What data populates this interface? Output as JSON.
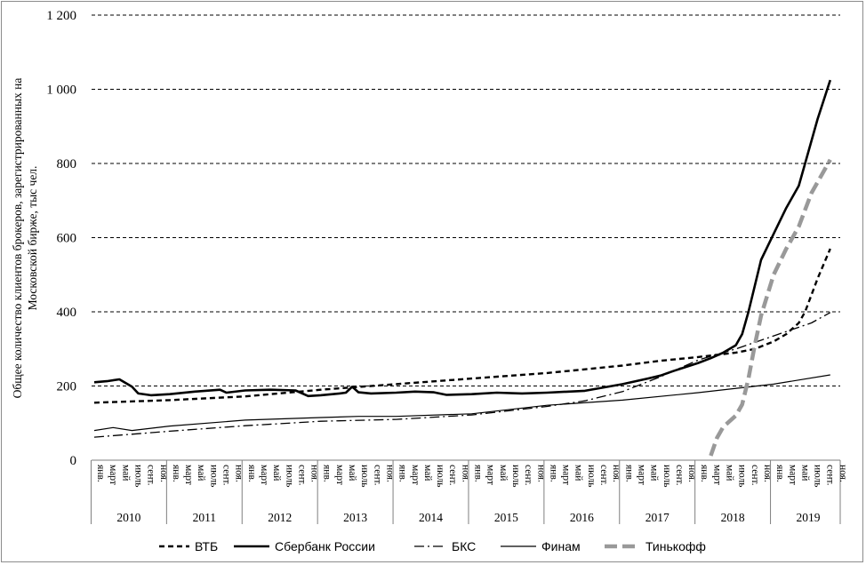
{
  "chart_data": {
    "type": "line",
    "title": "",
    "ylabel": "Общее количество клиентов брокеров, зарегистрированных на Московской бирже, тыс чел.",
    "xlabel": "",
    "ylim": [
      0,
      1200
    ],
    "yticks": [
      0,
      200,
      400,
      600,
      800,
      1000,
      1200
    ],
    "ytick_labels": [
      "0",
      "200",
      "400",
      "600",
      "800",
      "1 000",
      "1 200"
    ],
    "grid": "horizontal dashed",
    "legend_position": "bottom",
    "months_per_year": [
      "янв.",
      "март",
      "май",
      "июль",
      "сент.",
      "ноя."
    ],
    "years": [
      "2010",
      "2011",
      "2012",
      "2013",
      "2014",
      "2015",
      "2016",
      "2017",
      "2018",
      "2019"
    ],
    "x_start": "2010-01",
    "x_end": "2019-10",
    "series": [
      {
        "name": "ВТБ",
        "style": "short-dash",
        "color": "#000000",
        "points": [
          [
            "2010-01",
            155
          ],
          [
            "2011-01",
            162
          ],
          [
            "2012-01",
            172
          ],
          [
            "2013-01",
            190
          ],
          [
            "2014-01",
            205
          ],
          [
            "2015-01",
            220
          ],
          [
            "2016-01",
            235
          ],
          [
            "2017-01",
            255
          ],
          [
            "2017-07",
            268
          ],
          [
            "2018-01",
            278
          ],
          [
            "2018-07",
            290
          ],
          [
            "2018-10",
            300
          ],
          [
            "2019-01",
            320
          ],
          [
            "2019-03",
            340
          ],
          [
            "2019-05",
            370
          ],
          [
            "2019-06",
            400
          ],
          [
            "2019-08",
            490
          ],
          [
            "2019-10",
            570
          ]
        ]
      },
      {
        "name": "Сбербанк России",
        "style": "solid-bold",
        "color": "#000000",
        "points": [
          [
            "2010-01",
            210
          ],
          [
            "2010-03",
            213
          ],
          [
            "2010-05",
            218
          ],
          [
            "2010-07",
            198
          ],
          [
            "2010-08",
            180
          ],
          [
            "2010-10",
            175
          ],
          [
            "2011-01",
            178
          ],
          [
            "2011-05",
            185
          ],
          [
            "2011-09",
            190
          ],
          [
            "2011-10",
            182
          ],
          [
            "2012-01",
            188
          ],
          [
            "2012-05",
            190
          ],
          [
            "2012-09",
            188
          ],
          [
            "2012-11",
            173
          ],
          [
            "2013-01",
            175
          ],
          [
            "2013-04",
            180
          ],
          [
            "2013-05",
            182
          ],
          [
            "2013-06",
            198
          ],
          [
            "2013-07",
            183
          ],
          [
            "2013-09",
            180
          ],
          [
            "2014-01",
            182
          ],
          [
            "2014-04",
            185
          ],
          [
            "2014-07",
            183
          ],
          [
            "2014-09",
            176
          ],
          [
            "2015-01",
            178
          ],
          [
            "2015-05",
            182
          ],
          [
            "2015-09",
            180
          ],
          [
            "2016-01",
            182
          ],
          [
            "2016-07",
            187
          ],
          [
            "2017-01",
            205
          ],
          [
            "2017-05",
            220
          ],
          [
            "2017-07",
            228
          ],
          [
            "2017-09",
            240
          ],
          [
            "2018-01",
            262
          ],
          [
            "2018-03",
            275
          ],
          [
            "2018-05",
            290
          ],
          [
            "2018-07",
            310
          ],
          [
            "2018-08",
            340
          ],
          [
            "2018-09",
            400
          ],
          [
            "2018-10",
            470
          ],
          [
            "2018-11",
            540
          ],
          [
            "2019-01",
            610
          ],
          [
            "2019-03",
            680
          ],
          [
            "2019-05",
            740
          ],
          [
            "2019-06",
            800
          ],
          [
            "2019-08",
            920
          ],
          [
            "2019-10",
            1025
          ]
        ]
      },
      {
        "name": "БКС",
        "style": "dash-dot",
        "color": "#000000",
        "points": [
          [
            "2010-01",
            62
          ],
          [
            "2011-01",
            78
          ],
          [
            "2012-01",
            93
          ],
          [
            "2013-01",
            105
          ],
          [
            "2014-01",
            110
          ],
          [
            "2015-01",
            122
          ],
          [
            "2016-01",
            145
          ],
          [
            "2016-07",
            160
          ],
          [
            "2017-01",
            185
          ],
          [
            "2017-07",
            225
          ],
          [
            "2018-01",
            270
          ],
          [
            "2018-07",
            300
          ],
          [
            "2019-01",
            335
          ],
          [
            "2019-07",
            370
          ],
          [
            "2019-10",
            398
          ]
        ]
      },
      {
        "name": "Финам",
        "style": "solid-thin",
        "color": "#000000",
        "points": [
          [
            "2010-01",
            80
          ],
          [
            "2010-04",
            88
          ],
          [
            "2010-07",
            80
          ],
          [
            "2011-01",
            92
          ],
          [
            "2012-01",
            108
          ],
          [
            "2013-01",
            115
          ],
          [
            "2013-07",
            118
          ],
          [
            "2014-01",
            118
          ],
          [
            "2015-01",
            125
          ],
          [
            "2016-01",
            148
          ],
          [
            "2017-01",
            162
          ],
          [
            "2018-01",
            182
          ],
          [
            "2019-01",
            205
          ],
          [
            "2019-10",
            230
          ]
        ]
      },
      {
        "name": "Тинькофф",
        "style": "thick-grey-dash",
        "color": "#999999",
        "points": [
          [
            "2018-03",
            12
          ],
          [
            "2018-04",
            60
          ],
          [
            "2018-05",
            90
          ],
          [
            "2018-07",
            120
          ],
          [
            "2018-08",
            150
          ],
          [
            "2018-09",
            220
          ],
          [
            "2018-10",
            310
          ],
          [
            "2018-11",
            390
          ],
          [
            "2019-01",
            500
          ],
          [
            "2019-03",
            570
          ],
          [
            "2019-05",
            630
          ],
          [
            "2019-07",
            720
          ],
          [
            "2019-10",
            810
          ]
        ]
      }
    ]
  }
}
